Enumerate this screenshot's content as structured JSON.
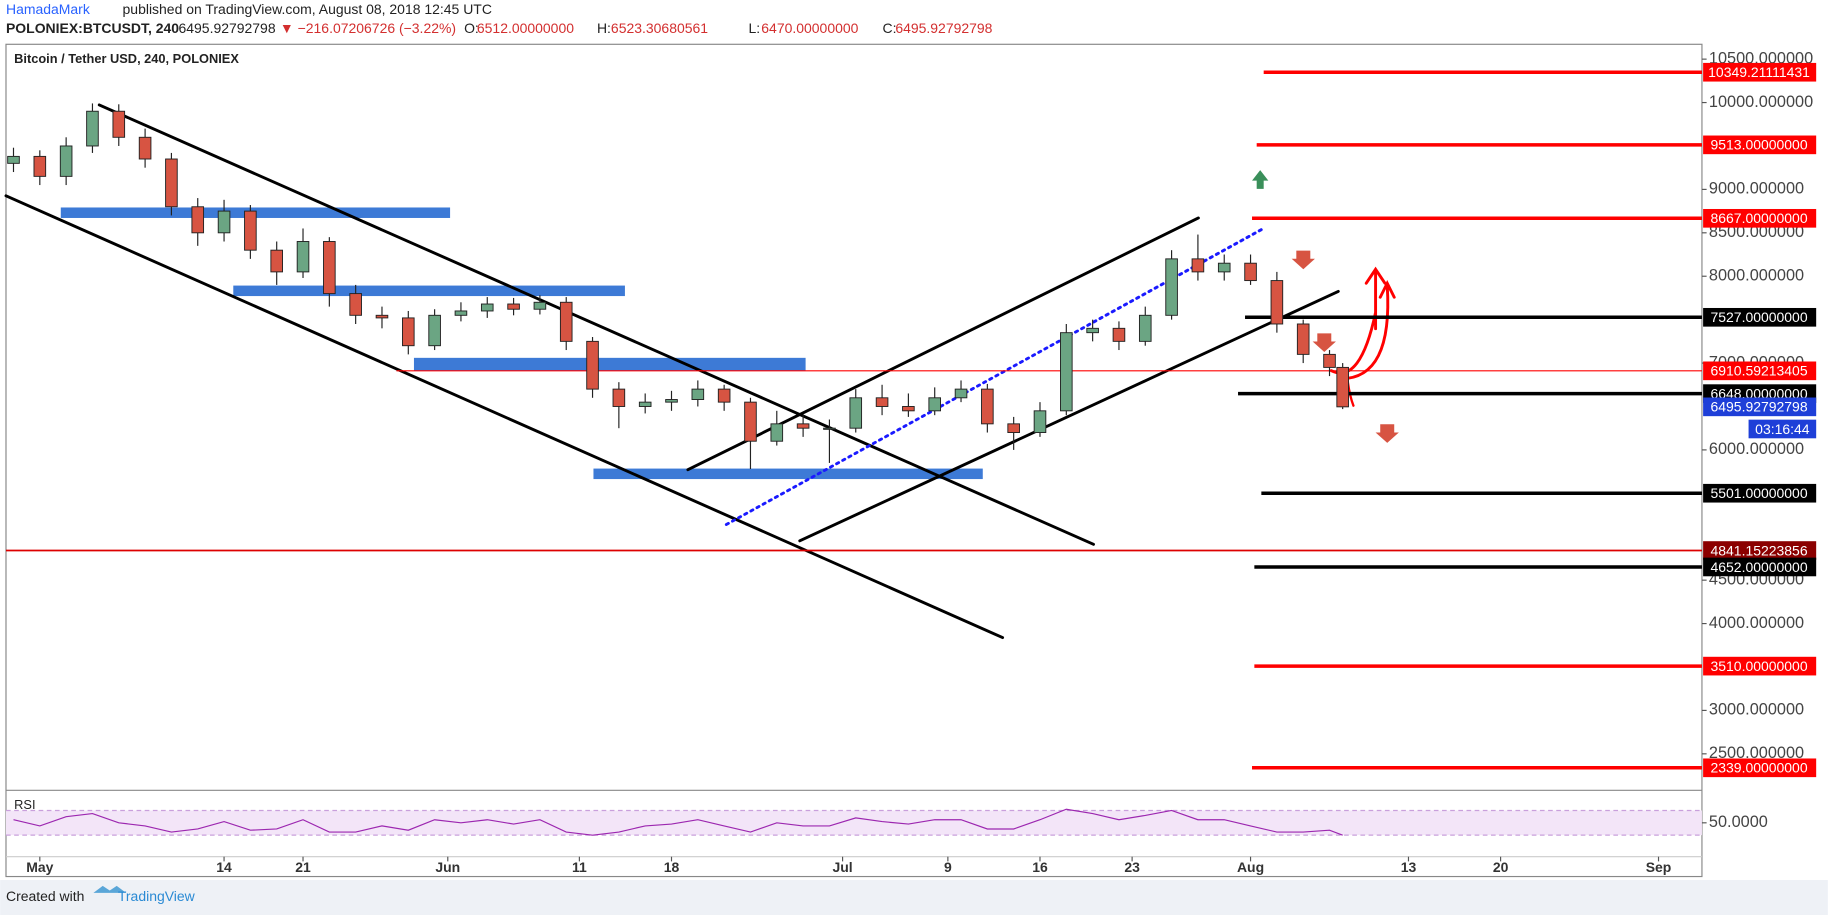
{
  "header": {
    "author": "HamadaMark",
    "published": "published on TradingView.com, August 08, 2018 12:45 UTC",
    "symbol": "POLONIEX:BTCUSDT, 240",
    "last": "6495.92792798",
    "change": "▼ −216.07206726 (−3.22%)",
    "quote": [
      {
        "k": "O:",
        "v": "6512.00000000"
      },
      {
        "k": "H:",
        "v": "6523.30680561"
      },
      {
        "k": "L:",
        "v": "6470.00000000"
      },
      {
        "k": "C:",
        "v": "6495.92792798"
      }
    ]
  },
  "footer": {
    "created": "Created with",
    "brand": "TradingView"
  },
  "chart_data": {
    "type": "candlestick",
    "title": "Bitcoin / Tether USD, 240, POLONIEX",
    "up_color": "#6ba583",
    "down_color": "#d75442",
    "x": [
      -2,
      0,
      2,
      4,
      6,
      8,
      10,
      12,
      14,
      16,
      18,
      20,
      22,
      24,
      26,
      28,
      30,
      32,
      34,
      36,
      38,
      40,
      42,
      44,
      46,
      48,
      50,
      52,
      54,
      56,
      58,
      60,
      62,
      64,
      66,
      68,
      70,
      72,
      74,
      76,
      78,
      80,
      82,
      84,
      86,
      88,
      90,
      92,
      94,
      96,
      98,
      99
    ],
    "open": [
      9300,
      9380,
      9150,
      9500,
      9900,
      9600,
      9350,
      8800,
      8500,
      8750,
      8300,
      8050,
      8400,
      7800,
      7550,
      7520,
      7200,
      7550,
      7600,
      7680,
      7620,
      7700,
      7250,
      6700,
      6500,
      6550,
      6580,
      6700,
      6550,
      6100,
      6300,
      6250,
      6250,
      6600,
      6500,
      6450,
      6600,
      6700,
      6300,
      6200,
      6450,
      7350,
      7400,
      7250,
      7550,
      8200,
      8050,
      8150,
      7950,
      7450,
      7100,
      6950
    ],
    "high": [
      9480,
      9450,
      9600,
      9990,
      9980,
      9700,
      9420,
      8900,
      8880,
      8820,
      8400,
      8550,
      8450,
      7900,
      7650,
      7600,
      7620,
      7700,
      7760,
      7750,
      7780,
      7760,
      7300,
      6780,
      6650,
      6680,
      6800,
      6750,
      6600,
      6450,
      6400,
      6350,
      6700,
      6750,
      6650,
      6720,
      6800,
      6760,
      6380,
      6550,
      7450,
      7500,
      7480,
      7650,
      8300,
      8480,
      8250,
      8250,
      8050,
      7500,
      7150,
      7000
    ],
    "low": [
      9200,
      9050,
      9050,
      9420,
      9500,
      9250,
      8700,
      8350,
      8400,
      8200,
      7900,
      7980,
      7650,
      7450,
      7400,
      7100,
      7150,
      7480,
      7520,
      7550,
      7560,
      7150,
      6600,
      6250,
      6420,
      6450,
      6500,
      6450,
      5780,
      6050,
      6150,
      5850,
      6200,
      6400,
      6380,
      6400,
      6550,
      6200,
      6000,
      6150,
      6400,
      7250,
      7150,
      7200,
      7500,
      7950,
      7950,
      7900,
      7350,
      7000,
      6850,
      6470
    ],
    "close": [
      9380,
      9150,
      9500,
      9900,
      9600,
      9350,
      8800,
      8500,
      8750,
      8300,
      8050,
      8400,
      7800,
      7550,
      7520,
      7200,
      7550,
      7600,
      7680,
      7620,
      7700,
      7250,
      6700,
      6500,
      6550,
      6580,
      6700,
      6550,
      6100,
      6300,
      6250,
      6250,
      6600,
      6500,
      6450,
      6600,
      6700,
      6300,
      6200,
      6450,
      7350,
      7400,
      7250,
      7550,
      8200,
      8050,
      8150,
      7950,
      7450,
      7100,
      6950,
      6495.93
    ],
    "xlim": [
      -2.57,
      126.3
    ],
    "xticks": [
      {
        "value": 0,
        "label": "May"
      },
      14,
      {
        "value": 20,
        "label": "21"
      },
      {
        "value": 31,
        "label": "Jun"
      },
      {
        "value": 41,
        "label": "11"
      },
      {
        "value": 48,
        "label": "18"
      },
      {
        "value": 61,
        "label": "Jul"
      },
      {
        "value": 69,
        "label": "9"
      },
      {
        "value": 76,
        "label": "16"
      },
      {
        "value": 83,
        "label": "23"
      },
      {
        "value": 92,
        "label": "Aug"
      },
      {
        "value": 104,
        "label": "13"
      },
      {
        "value": 111,
        "label": "20"
      },
      {
        "value": 123,
        "label": "Sep"
      }
    ],
    "ylim": [
      2107,
      10671
    ],
    "yticks": [
      {
        "value": 2500,
        "label": "2500.000000"
      },
      {
        "value": 3000,
        "label": "3000.000000"
      },
      {
        "value": 4000,
        "label": "4000.000000"
      },
      {
        "value": 4500,
        "label": "4500.000000"
      },
      {
        "value": 6000,
        "label": "6000.000000"
      },
      {
        "value": 7000,
        "label": "7000.000000"
      },
      {
        "value": 8000,
        "label": "8000.000000"
      },
      {
        "value": 8500,
        "label": "8500.000000"
      },
      {
        "value": 9000,
        "label": "9000.000000"
      },
      {
        "value": 10000,
        "label": "10000.000000"
      },
      {
        "value": 10500,
        "label": "10500.000000"
      }
    ],
    "levels": [
      {
        "value": 10349.21111431,
        "label": "10349.21111431",
        "color": "#ff0000"
      },
      {
        "value": 9513,
        "label": "9513.00000000",
        "color": "#ff0000"
      },
      {
        "value": 8667,
        "label": "8667.00000000",
        "color": "#ff0000"
      },
      {
        "value": 7527,
        "label": "7527.00000000",
        "color": "#000000"
      },
      {
        "value": 6910.59213405,
        "label": "6910.59213405",
        "color": "#ff0000"
      },
      {
        "value": 6648,
        "label": "6648.00000000",
        "color": "#000000"
      },
      {
        "value": 5501,
        "label": "5501.00000000",
        "color": "#000000"
      },
      {
        "value": 4841.15223856,
        "label": "4841.15223856",
        "color": "#8b0000"
      },
      {
        "value": 4652,
        "label": "4652.00000000",
        "color": "#000000"
      },
      {
        "value": 3510,
        "label": "3510.00000000",
        "color": "#ff0000"
      },
      {
        "value": 2339,
        "label": "2339.00000000",
        "color": "#ff0000"
      }
    ],
    "last_price": {
      "value": 6495.92792798,
      "label": "6495.92792798",
      "color": "#1e3fd8",
      "countdown": "03:16:44"
    },
    "rsi": {
      "title": "RSI",
      "color": "#9c27b0",
      "band": [
        30,
        70
      ],
      "ylim": [
        -5,
        99
      ],
      "yticks": [
        {
          "value": 50,
          "label": "50.0000"
        }
      ],
      "values": [
        55,
        45,
        60,
        65,
        50,
        45,
        35,
        40,
        52,
        38,
        40,
        55,
        35,
        35,
        45,
        38,
        55,
        50,
        55,
        48,
        55,
        35,
        30,
        35,
        45,
        48,
        55,
        45,
        35,
        50,
        45,
        45,
        58,
        52,
        48,
        55,
        55,
        40,
        40,
        55,
        72,
        65,
        55,
        62,
        70,
        55,
        55,
        45,
        35,
        35,
        38,
        30
      ]
    }
  }
}
